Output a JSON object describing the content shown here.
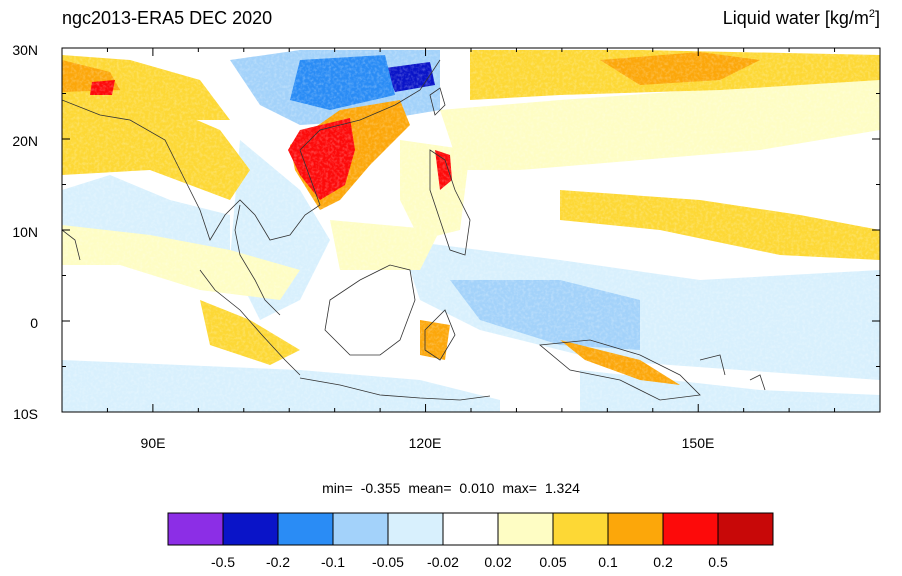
{
  "header": {
    "left_title": "ngc2013-ERA5 DEC 2020",
    "right_title_main": "Liquid water  [kg/m",
    "right_title_sup": "2",
    "right_title_close": "]"
  },
  "map": {
    "lat_labels": [
      "30N",
      "20N",
      "10N",
      "0",
      "10S"
    ],
    "lon_labels": [
      "90E",
      "120E",
      "150E"
    ],
    "lon_range": [
      80,
      170
    ],
    "lat_range": [
      -10,
      30
    ]
  },
  "stats": {
    "min_label": "min=",
    "min_value": "-0.355",
    "mean_label": "mean=",
    "mean_value": "0.010",
    "max_label": "max=",
    "max_value": "1.324"
  },
  "colorbar": {
    "colors": [
      "#8c2ee6",
      "#0a14c8",
      "#2a8cf5",
      "#a3d2fa",
      "#d8f0fd",
      "#ffffff",
      "#fefdc4",
      "#fdd835",
      "#fca70a",
      "#fd0a0a",
      "#c80808"
    ],
    "tick_labels": [
      "-0.5",
      "-0.2",
      "-0.1",
      "-0.05",
      "-0.02",
      "0.02",
      "0.05",
      "0.1",
      "0.2",
      "0.5"
    ]
  },
  "colors": {
    "frame": "#000000",
    "coast": "#333333"
  }
}
